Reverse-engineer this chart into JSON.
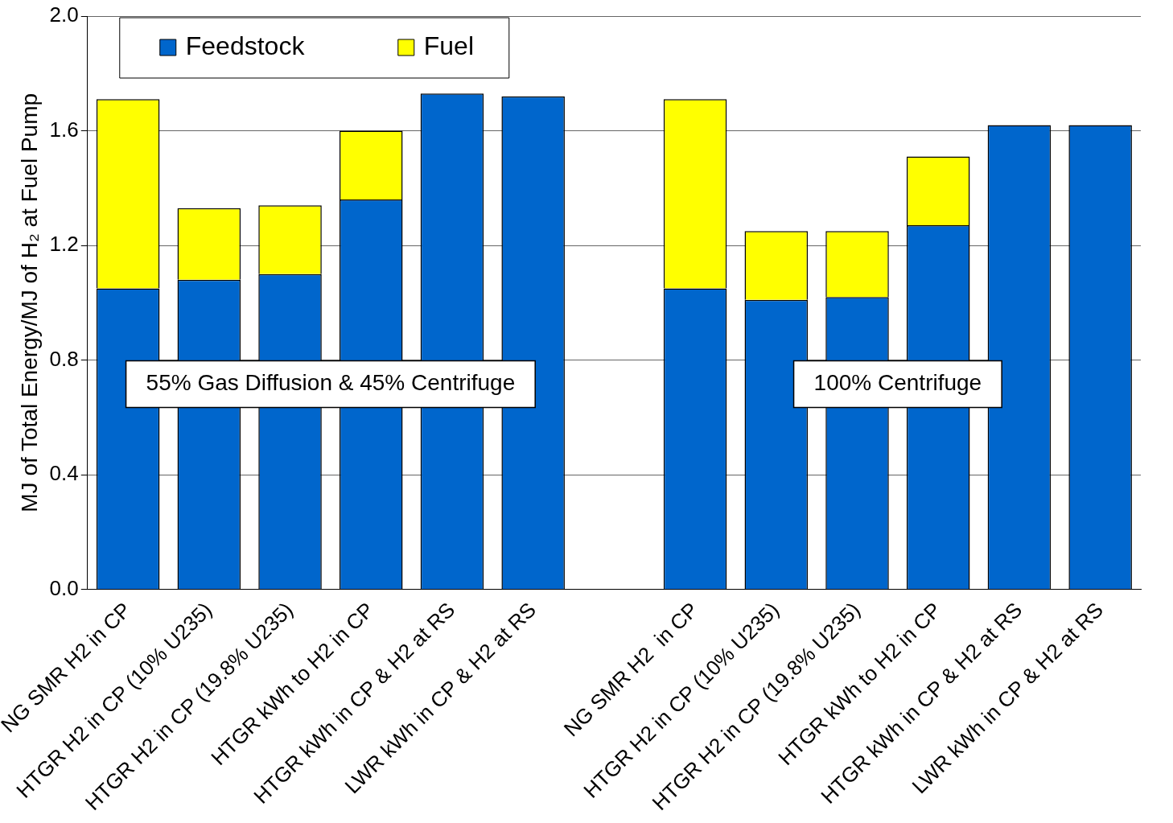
{
  "chart_data": {
    "type": "bar",
    "stacked": true,
    "ylabel": "MJ of Total Energy/MJ of H₂ at Fuel Pump",
    "categories": [
      "NG SMR H2 in CP",
      "HTGR H2 in CP (10% U235)",
      "HTGR H2 in CP (19.8% U235)",
      "HTGR kWh to H2 in CP",
      "HTGR kWh in CP & H2 at RS",
      "LWR kWh in CP & H2 at RS",
      null,
      "NG SMR H2  in CP",
      "HTGR H2 in CP (10% U235)",
      "HTGR H2 in CP (19.8% U235)",
      "HTGR kWh to H2 in CP",
      "HTGR kWh in CP & H2 at RS",
      "LWR kWh in CP & H2 at RS"
    ],
    "series": [
      {
        "name": "Feedstock",
        "color": "#0066cc",
        "values": [
          1.05,
          1.08,
          1.1,
          1.36,
          1.73,
          1.72,
          null,
          1.05,
          1.01,
          1.02,
          1.27,
          1.62,
          1.62
        ]
      },
      {
        "name": "Fuel",
        "color": "#ffff00",
        "values": [
          0.66,
          0.25,
          0.24,
          0.24,
          0,
          0,
          null,
          0.66,
          0.24,
          0.23,
          0.24,
          0,
          0
        ]
      }
    ],
    "ylim": [
      0,
      2
    ],
    "yticks": [
      {
        "value": 0,
        "label": "0.0"
      },
      {
        "value": 0.4,
        "label": "0.4"
      },
      {
        "value": 0.8,
        "label": "0.8"
      },
      {
        "value": 1.2,
        "label": "1.2"
      },
      {
        "value": 1.6,
        "label": "1.6"
      },
      {
        "value": 2,
        "label": "2.0"
      }
    ],
    "grid": "y",
    "legend": "top left",
    "annotations": [
      "55% Gas Diffusion & 45% Centrifuge",
      "100% Centrifuge"
    ]
  }
}
